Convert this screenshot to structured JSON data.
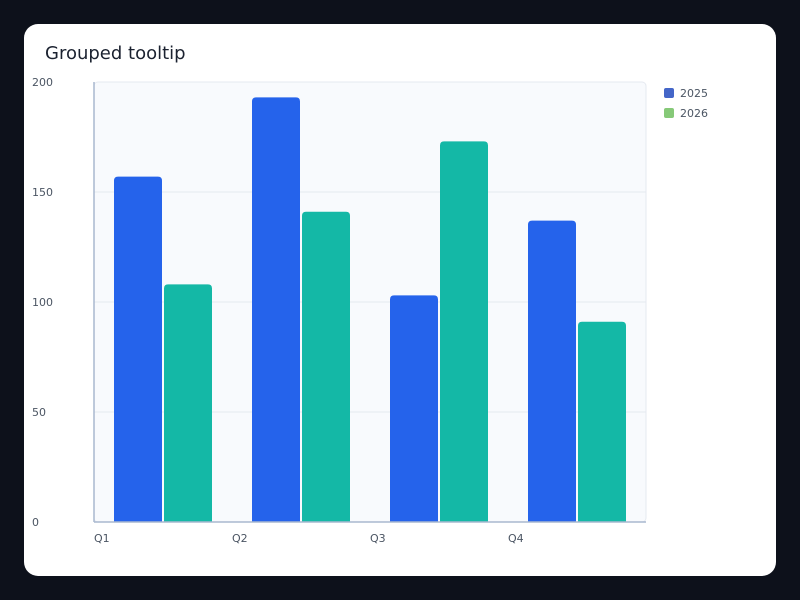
{
  "chart_data": {
    "type": "bar",
    "title": "Grouped tooltip",
    "categories": [
      "Q1",
      "Q2",
      "Q3",
      "Q4"
    ],
    "series": [
      {
        "name": "2025",
        "values": [
          157,
          193,
          103,
          137
        ],
        "color": "#2563eb",
        "legend_color": "#4466c8"
      },
      {
        "name": "2026",
        "values": [
          108,
          141,
          173,
          91
        ],
        "color": "#14b8a6",
        "legend_color": "#86c978"
      }
    ],
    "ylim": [
      0,
      200
    ],
    "yticks": [
      0,
      50,
      100,
      150,
      200
    ],
    "xlabel": "",
    "ylabel": "",
    "grid": true,
    "legend_position": "right"
  },
  "colors": {
    "page_background": "#0d111b",
    "card_background": "#ffffff",
    "plot_background": "#f8fafd",
    "grid": "#e5e9f0",
    "axis": "#a9b8cf"
  }
}
